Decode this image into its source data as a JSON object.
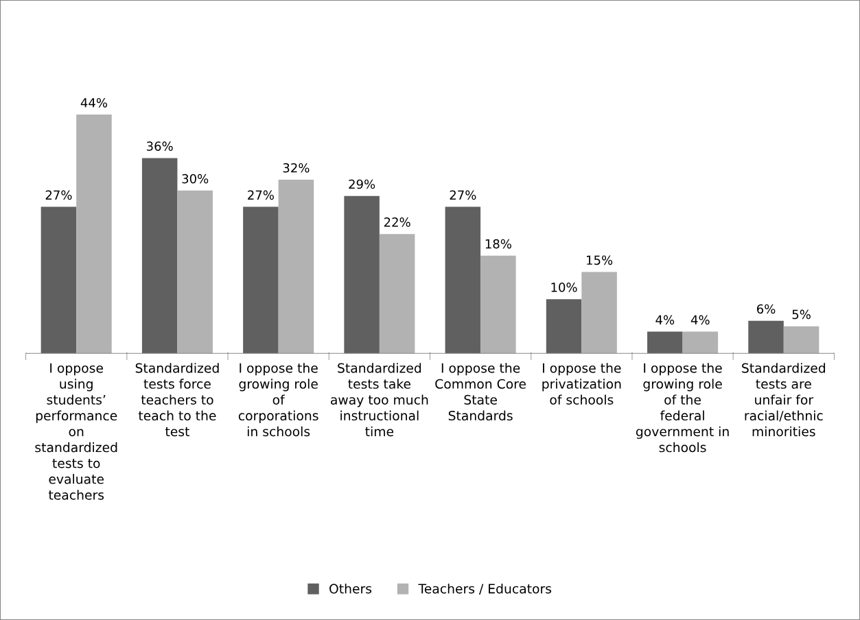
{
  "chart_data": {
    "type": "bar",
    "categories": [
      "I oppose using students’ performance on standardized tests to evaluate teachers",
      "Standardized tests force teachers to teach to the test",
      "I oppose the growing role of corporations in schools",
      "Standardized tests take away too much instructional time",
      "I oppose the Common Core State Standards",
      "I oppose the privatization of schools",
      "I oppose the growing role of the federal government in schools",
      "Standardized tests are unfair for racial/ethnic minorities"
    ],
    "series": [
      {
        "name": "Others",
        "color": "#606060",
        "values": [
          27,
          36,
          27,
          29,
          27,
          10,
          4,
          6
        ],
        "value_labels": [
          "27%",
          "36%",
          "27%",
          "29%",
          "27%",
          "10%",
          "4%",
          "6%"
        ]
      },
      {
        "name": "Teachers / Educators",
        "color": "#b2b2b2",
        "values": [
          44,
          30,
          32,
          22,
          18,
          15,
          4,
          5
        ],
        "value_labels": [
          "44%",
          "30%",
          "32%",
          "22%",
          "18%",
          "15%",
          "4%",
          "5%"
        ]
      }
    ],
    "legend": "bottom",
    "grid": false,
    "tick_labels": "x"
  }
}
